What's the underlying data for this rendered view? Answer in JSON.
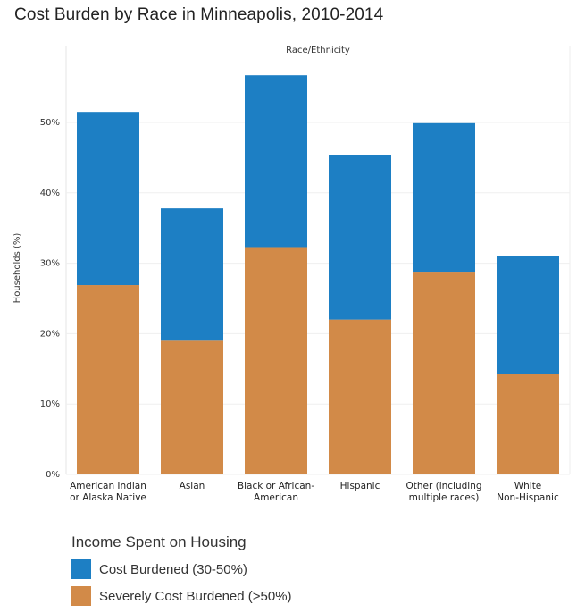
{
  "chart_data": {
    "type": "bar",
    "stacked": true,
    "title": "Cost Burden by Race in Minneapolis, 2010-2014",
    "column_header": "Race/Ethnicity",
    "ylabel": "Households (%)",
    "ylim": [
      0,
      60
    ],
    "yticks": [
      0,
      10,
      20,
      30,
      40,
      50
    ],
    "ytick_labels": [
      "0%",
      "10%",
      "20%",
      "30%",
      "40%",
      "50%"
    ],
    "grid": true,
    "categories": [
      [
        "American Indian",
        "or Alaska Native"
      ],
      [
        "Asian"
      ],
      [
        "Black or African-",
        "American"
      ],
      [
        "Hispanic"
      ],
      [
        "Other (including",
        "multiple races)"
      ],
      [
        "White",
        "Non-Hispanic"
      ]
    ],
    "series": [
      {
        "name": "Severely Cost Burdened (>50%)",
        "color": "#d28a48",
        "values": [
          26.9,
          19.0,
          32.3,
          22.0,
          28.8,
          14.3
        ]
      },
      {
        "name": "Cost Burdened (30-50%)",
        "color": "#1d7fc4",
        "values": [
          24.6,
          18.8,
          24.4,
          23.4,
          21.1,
          16.7
        ]
      }
    ],
    "legend": {
      "title": "Income Spent on Housing",
      "placement": "bottom-left",
      "entries": [
        {
          "label": "Cost Burdened (30-50%)",
          "color": "#1d7fc4"
        },
        {
          "label": "Severely Cost Burdened (>50%)",
          "color": "#d28a48"
        }
      ]
    }
  }
}
